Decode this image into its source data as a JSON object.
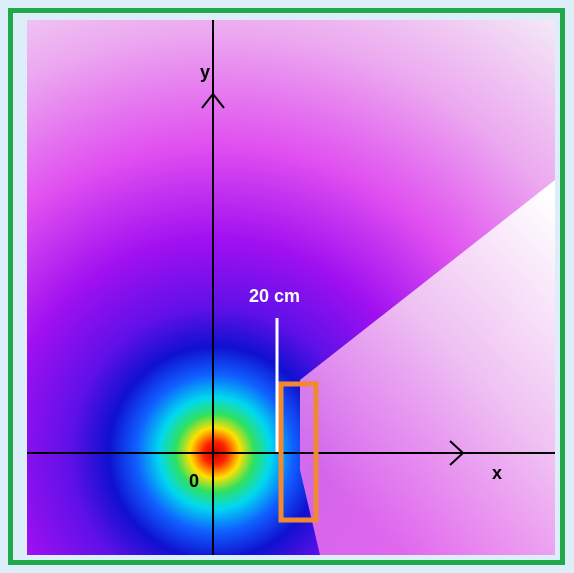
{
  "labels": {
    "y_axis": "y",
    "x_axis": "x",
    "origin": "0",
    "distance": "20 cm"
  }
}
